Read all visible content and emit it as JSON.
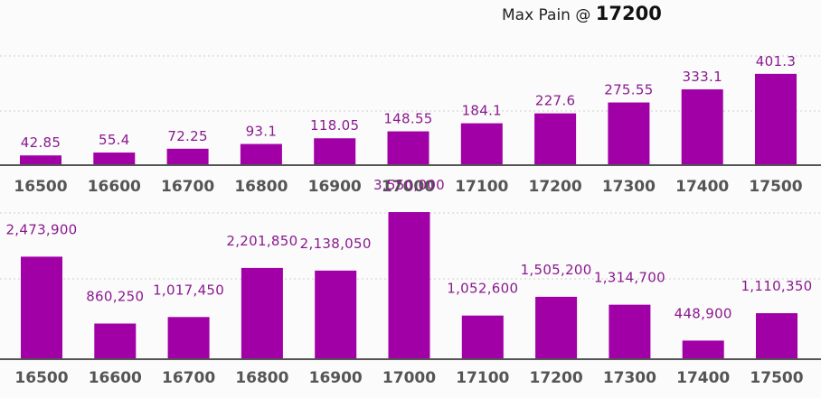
{
  "header": {
    "prefix": "Max Pain @",
    "value": "17200"
  },
  "colors": {
    "bar": "#a000a6",
    "label": "#8a1a8e",
    "axis": "#555555"
  },
  "chart_data": [
    {
      "type": "bar",
      "categories": [
        "16500",
        "16600",
        "16700",
        "16800",
        "16900",
        "17000",
        "17100",
        "17200",
        "17300",
        "17400",
        "17500"
      ],
      "values": [
        42.85,
        55.4,
        72.25,
        93.1,
        118.05,
        148.55,
        184.1,
        227.6,
        275.55,
        333.1,
        401.3
      ],
      "value_labels": [
        "42.85",
        "55.4",
        "72.25",
        "93.1",
        "118.05",
        "148.55",
        "184.1",
        "227.6",
        "275.55",
        "333.1",
        "401.3"
      ],
      "ylim": [
        0,
        480
      ],
      "grid": true
    },
    {
      "type": "bar",
      "categories": [
        "16500",
        "16600",
        "16700",
        "16800",
        "16900",
        "17000",
        "17100",
        "17200",
        "17300",
        "17400",
        "17500"
      ],
      "values": [
        2473900,
        860250,
        1017450,
        2201850,
        2138050,
        3550000,
        1052600,
        1505200,
        1314700,
        448900,
        1110350
      ],
      "value_labels": [
        "2,473,900",
        "860,250",
        "1,017,450",
        "2,201,850",
        "2,138,050",
        "3,550,000",
        "1,052,600",
        "1,505,200",
        "1,314,700",
        "448,900",
        "1,110,350"
      ],
      "ylim": [
        0,
        3550000
      ],
      "grid": true
    }
  ]
}
